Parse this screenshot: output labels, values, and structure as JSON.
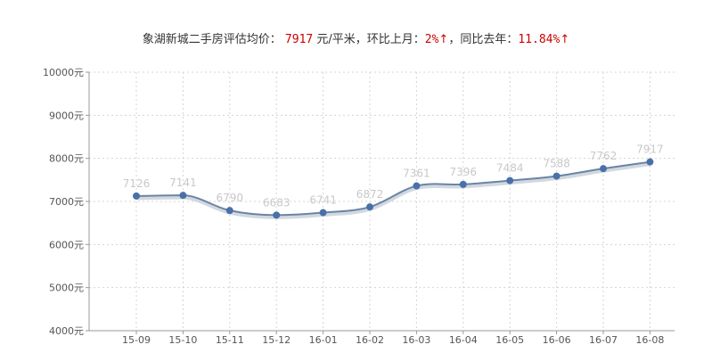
{
  "header": {
    "prefix": "象湖新城二手房评估均价：",
    "price": "7917",
    "unit": "元/平米，环比上月：",
    "mom": "2%",
    "mom_arrow": "↑",
    "yoy_label": "，同比去年：",
    "yoy": "11.84%",
    "yoy_arrow": "↑"
  },
  "colors": {
    "line": "#6b84a6",
    "point": "#4a70a8",
    "grid": "#d4d4d4",
    "axis": "#999999",
    "label": "#c8c8c8",
    "highlight": "#cc0000"
  },
  "chart_data": {
    "type": "line",
    "categories": [
      "15-09",
      "15-10",
      "15-11",
      "15-12",
      "16-01",
      "16-02",
      "16-03",
      "16-04",
      "16-05",
      "16-06",
      "16-07",
      "16-08"
    ],
    "series": [
      {
        "values": [
          7126,
          7141,
          6790,
          6683,
          6741,
          6872,
          7361,
          7396,
          7484,
          7588,
          7762,
          7917
        ]
      }
    ],
    "ylim": [
      4000,
      10000
    ],
    "yticks": [
      4000,
      5000,
      6000,
      7000,
      8000,
      9000,
      10000
    ],
    "ytick_suffix": "元",
    "grid": true,
    "data_labels": true,
    "xlabel": "",
    "ylabel": ""
  }
}
